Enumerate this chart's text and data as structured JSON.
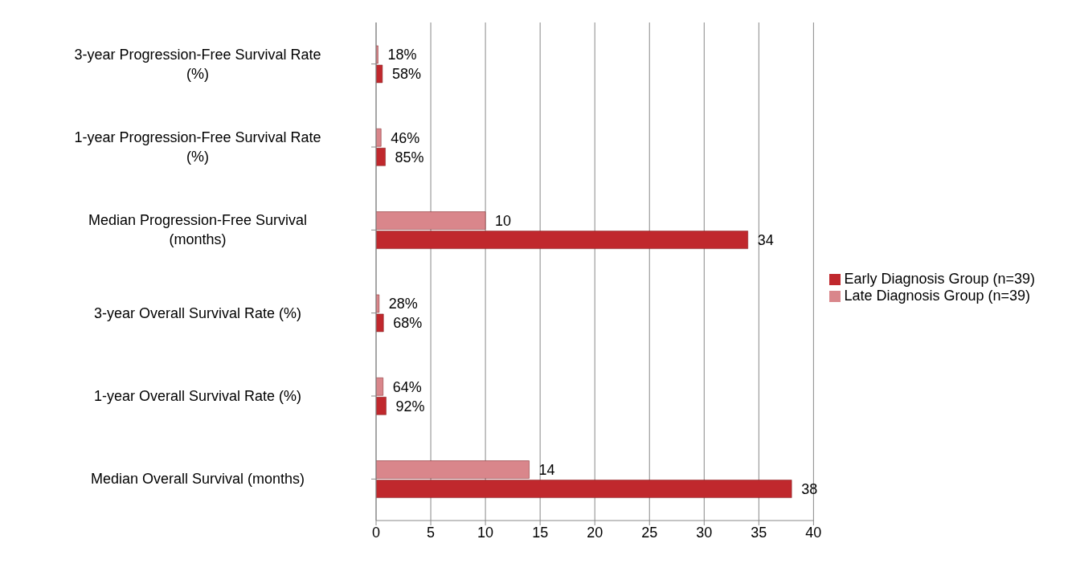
{
  "chart_data": {
    "type": "bar",
    "orientation": "horizontal",
    "categories": [
      "3-year Progression-Free Survival Rate (%)",
      "1-year Progression-Free Survival Rate (%)",
      "Median Progression-Free Survival (months)",
      "3-year Overall Survival Rate (%)",
      "1-year Overall Survival Rate (%)",
      "Median Overall Survival (months)"
    ],
    "series": [
      {
        "name": "Late Diagnosis Group (n=39)",
        "color": "#d9868b",
        "values": [
          0.18,
          0.46,
          10,
          0.28,
          0.64,
          14
        ],
        "value_labels": [
          "18%",
          "46%",
          "10",
          "28%",
          "64%",
          "14"
        ]
      },
      {
        "name": "Early Diagnosis Group (n=39)",
        "color": "#c0282d",
        "values": [
          0.58,
          0.85,
          34,
          0.68,
          0.92,
          38
        ],
        "value_labels": [
          "58%",
          "85%",
          "34",
          "68%",
          "92%",
          "38"
        ]
      }
    ],
    "xlim": [
      0,
      40
    ],
    "xticks": [
      0,
      5,
      10,
      15,
      20,
      25,
      30,
      35,
      40
    ],
    "grid": "x",
    "legend": "right"
  }
}
